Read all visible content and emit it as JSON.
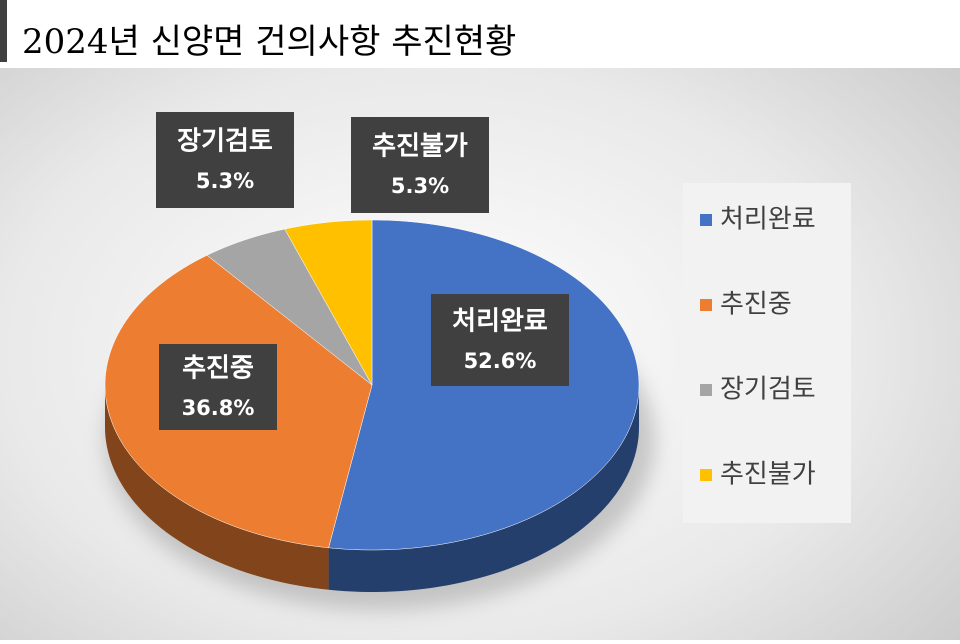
{
  "chart_data": {
    "type": "pie",
    "title": "2024년 신양면 건의사항 추진현황",
    "categories": [
      "처리완료",
      "추진중",
      "장기검토",
      "추진불가"
    ],
    "values": [
      52.6,
      36.8,
      5.3,
      5.3
    ],
    "value_labels": [
      "52.6%",
      "36.8%",
      "5.3%",
      "5.3%"
    ],
    "colors": [
      "#4472c4",
      "#ed7d31",
      "#a5a5a5",
      "#ffc000"
    ],
    "legend": "right"
  }
}
